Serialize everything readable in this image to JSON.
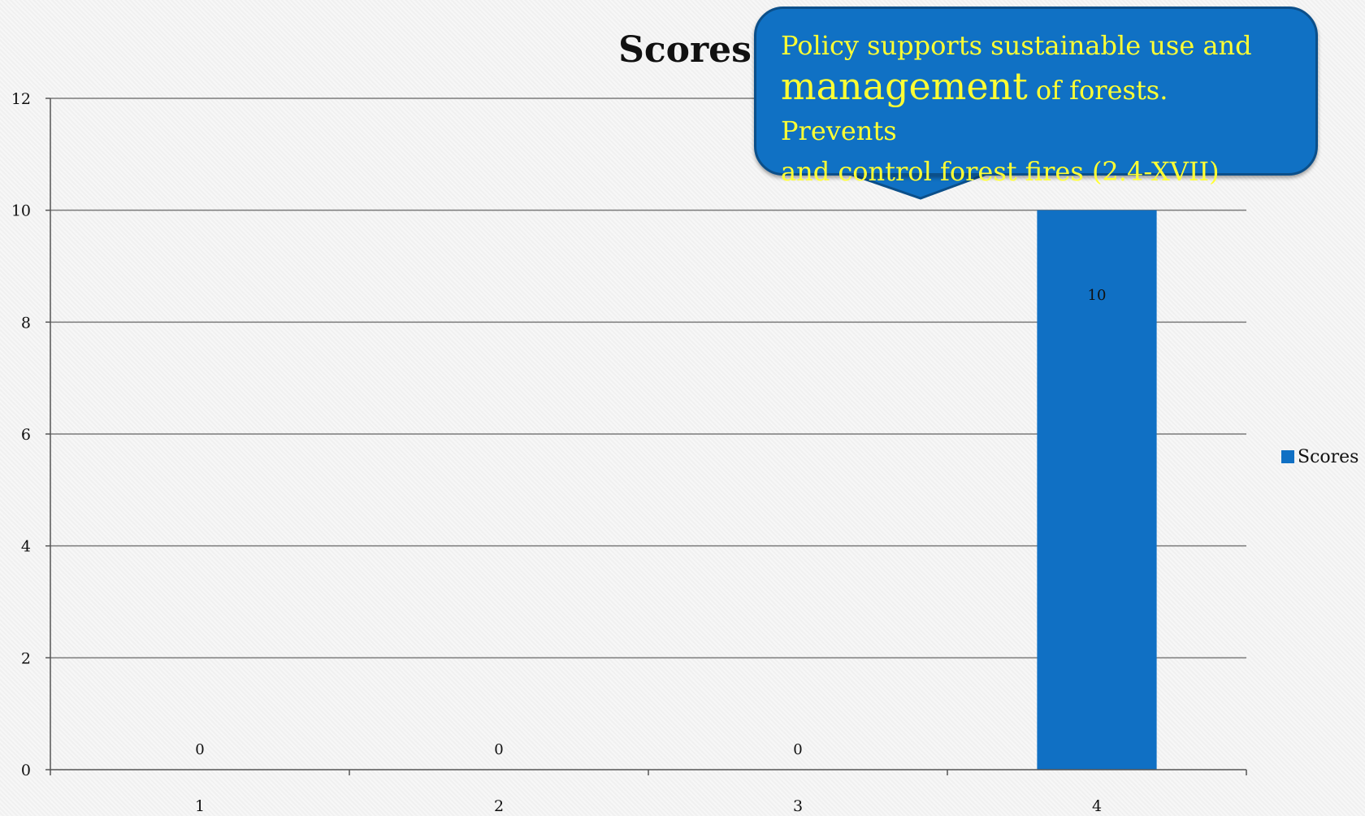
{
  "chart_data": {
    "type": "bar",
    "title": "Scores",
    "categories": [
      "1",
      "2",
      "3",
      "4"
    ],
    "series": [
      {
        "name": "Scores",
        "values": [
          0,
          0,
          0,
          10
        ],
        "color": "#1070c4"
      }
    ],
    "ylim": [
      0,
      12
    ],
    "yticks": [
      0,
      2,
      4,
      6,
      8,
      10,
      12
    ],
    "data_labels": [
      "0",
      "0",
      "0",
      "10"
    ],
    "grid": true,
    "legend": "right"
  },
  "callout": {
    "line1": "Policy supports sustainable  use and",
    "big_word": "management",
    "line2_rest": " of forests. Prevents",
    "line3": "and control forest fires (2.4-XVII)",
    "background": "#1071c4",
    "text_color": "#ffff33"
  }
}
